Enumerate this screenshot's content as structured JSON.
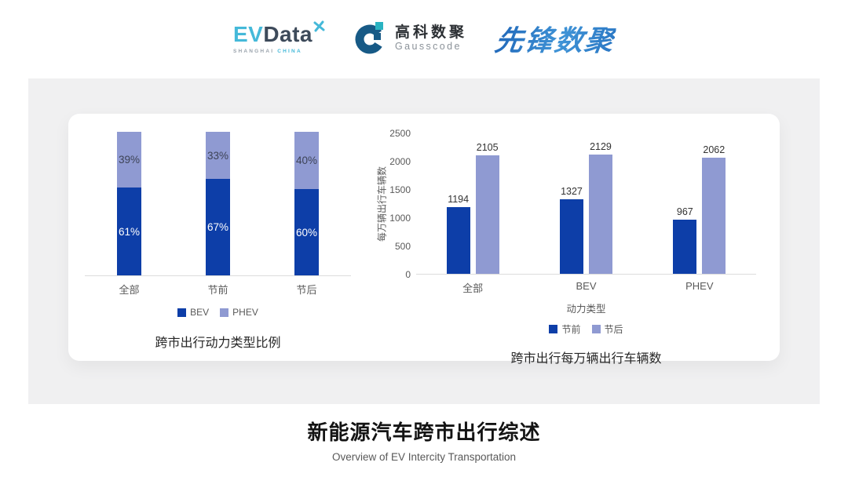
{
  "header": {
    "evdata": {
      "ev": "EV",
      "data": "Data",
      "sub_left": "SHANGHAI",
      "sub_right": "CHINA"
    },
    "gausscode": {
      "cn": "高科数聚",
      "en": "Gausscode"
    },
    "pioneer": {
      "text": "先锋数聚"
    }
  },
  "colors": {
    "series_dark": "#0d3ea8",
    "series_light": "#8f9ad2",
    "evdata_blue": "#45b9d9",
    "evdata_slate": "#3d4a5a",
    "gauss_navy": "#175a86",
    "gauss_teal": "#29b3c2",
    "axis_line": "#dcdcdc"
  },
  "chart_data": [
    {
      "type": "bar",
      "variant": "stacked-percent",
      "title": "跨市出行动力类型比例",
      "categories": [
        "全部",
        "节前",
        "节后"
      ],
      "series": [
        {
          "name": "BEV",
          "color": "#0d3ea8",
          "values": [
            61,
            67,
            60
          ]
        },
        {
          "name": "PHEV",
          "color": "#8f9ad2",
          "values": [
            39,
            33,
            40
          ]
        }
      ],
      "value_suffix": "%",
      "ylim": [
        0,
        100
      ],
      "legend_position": "bottom",
      "grid": false
    },
    {
      "type": "bar",
      "variant": "grouped",
      "title": "跨市出行每万辆出行车辆数",
      "xlabel": "动力类型",
      "ylabel": "每万辆出行车辆数",
      "categories": [
        "全部",
        "BEV",
        "PHEV"
      ],
      "series": [
        {
          "name": "节前",
          "color": "#0d3ea8",
          "values": [
            1194,
            1327,
            967
          ]
        },
        {
          "name": "节后",
          "color": "#8f9ad2",
          "values": [
            2105,
            2129,
            2062
          ]
        }
      ],
      "yticks": [
        0,
        500,
        1000,
        1500,
        2000,
        2500
      ],
      "ylim": [
        0,
        2500
      ],
      "legend_position": "bottom",
      "grid": false
    }
  ],
  "footer": {
    "title": "新能源汽车跨市出行综述",
    "subtitle": "Overview of EV Intercity Transportation"
  }
}
